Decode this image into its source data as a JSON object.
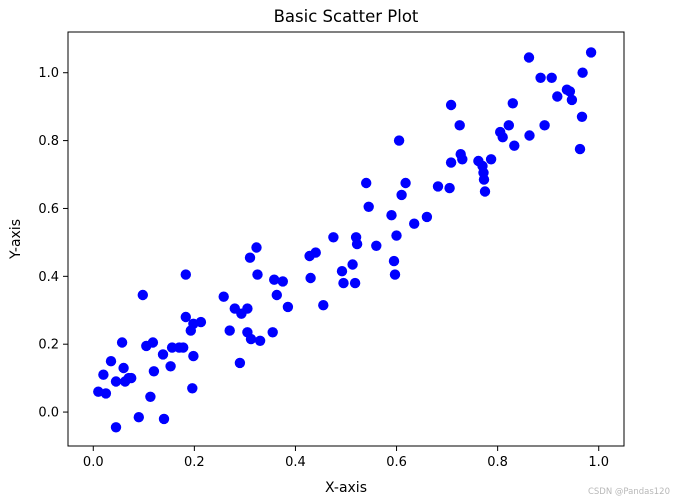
{
  "chart_data": {
    "type": "scatter",
    "title": "Basic Scatter Plot",
    "xlabel": "X-axis",
    "ylabel": "Y-axis",
    "xlim": [
      -0.05,
      1.05
    ],
    "ylim": [
      -0.1,
      1.12
    ],
    "x_ticks": [
      "0.0",
      "0.2",
      "0.4",
      "0.6",
      "0.8",
      "1.0"
    ],
    "y_ticks": [
      "0.0",
      "0.2",
      "0.4",
      "0.6",
      "0.8",
      "1.0"
    ],
    "grid": false,
    "legend": "none",
    "marker_color": "#0000ff",
    "points": [
      {
        "x": 0.01,
        "y": 0.06
      },
      {
        "x": 0.02,
        "y": 0.11
      },
      {
        "x": 0.025,
        "y": 0.055
      },
      {
        "x": 0.035,
        "y": 0.15
      },
      {
        "x": 0.045,
        "y": -0.045
      },
      {
        "x": 0.045,
        "y": 0.09
      },
      {
        "x": 0.057,
        "y": 0.205
      },
      {
        "x": 0.06,
        "y": 0.13
      },
      {
        "x": 0.063,
        "y": 0.09
      },
      {
        "x": 0.07,
        "y": 0.1
      },
      {
        "x": 0.075,
        "y": 0.1
      },
      {
        "x": 0.09,
        "y": -0.015
      },
      {
        "x": 0.098,
        "y": 0.345
      },
      {
        "x": 0.105,
        "y": 0.195
      },
      {
        "x": 0.113,
        "y": 0.045
      },
      {
        "x": 0.118,
        "y": 0.205
      },
      {
        "x": 0.12,
        "y": 0.12
      },
      {
        "x": 0.138,
        "y": 0.17
      },
      {
        "x": 0.14,
        "y": -0.02
      },
      {
        "x": 0.153,
        "y": 0.135
      },
      {
        "x": 0.156,
        "y": 0.19
      },
      {
        "x": 0.17,
        "y": 0.19
      },
      {
        "x": 0.178,
        "y": 0.19
      },
      {
        "x": 0.183,
        "y": 0.405
      },
      {
        "x": 0.183,
        "y": 0.28
      },
      {
        "x": 0.193,
        "y": 0.24
      },
      {
        "x": 0.196,
        "y": 0.07
      },
      {
        "x": 0.198,
        "y": 0.165
      },
      {
        "x": 0.198,
        "y": 0.26
      },
      {
        "x": 0.213,
        "y": 0.265
      },
      {
        "x": 0.258,
        "y": 0.34
      },
      {
        "x": 0.27,
        "y": 0.24
      },
      {
        "x": 0.28,
        "y": 0.305
      },
      {
        "x": 0.29,
        "y": 0.145
      },
      {
        "x": 0.293,
        "y": 0.29
      },
      {
        "x": 0.305,
        "y": 0.305
      },
      {
        "x": 0.305,
        "y": 0.235
      },
      {
        "x": 0.31,
        "y": 0.455
      },
      {
        "x": 0.312,
        "y": 0.215
      },
      {
        "x": 0.323,
        "y": 0.485
      },
      {
        "x": 0.325,
        "y": 0.405
      },
      {
        "x": 0.33,
        "y": 0.21
      },
      {
        "x": 0.355,
        "y": 0.235
      },
      {
        "x": 0.358,
        "y": 0.39
      },
      {
        "x": 0.363,
        "y": 0.345
      },
      {
        "x": 0.375,
        "y": 0.385
      },
      {
        "x": 0.385,
        "y": 0.31
      },
      {
        "x": 0.428,
        "y": 0.46
      },
      {
        "x": 0.43,
        "y": 0.395
      },
      {
        "x": 0.44,
        "y": 0.47
      },
      {
        "x": 0.455,
        "y": 0.315
      },
      {
        "x": 0.475,
        "y": 0.515
      },
      {
        "x": 0.492,
        "y": 0.415
      },
      {
        "x": 0.495,
        "y": 0.38
      },
      {
        "x": 0.513,
        "y": 0.435
      },
      {
        "x": 0.518,
        "y": 0.38
      },
      {
        "x": 0.52,
        "y": 0.515
      },
      {
        "x": 0.522,
        "y": 0.495
      },
      {
        "x": 0.54,
        "y": 0.675
      },
      {
        "x": 0.545,
        "y": 0.605
      },
      {
        "x": 0.56,
        "y": 0.49
      },
      {
        "x": 0.59,
        "y": 0.58
      },
      {
        "x": 0.595,
        "y": 0.445
      },
      {
        "x": 0.597,
        "y": 0.405
      },
      {
        "x": 0.6,
        "y": 0.52
      },
      {
        "x": 0.605,
        "y": 0.8
      },
      {
        "x": 0.61,
        "y": 0.64
      },
      {
        "x": 0.618,
        "y": 0.675
      },
      {
        "x": 0.635,
        "y": 0.555
      },
      {
        "x": 0.66,
        "y": 0.575
      },
      {
        "x": 0.682,
        "y": 0.665
      },
      {
        "x": 0.705,
        "y": 0.66
      },
      {
        "x": 0.708,
        "y": 0.905
      },
      {
        "x": 0.708,
        "y": 0.735
      },
      {
        "x": 0.725,
        "y": 0.845
      },
      {
        "x": 0.727,
        "y": 0.76
      },
      {
        "x": 0.73,
        "y": 0.745
      },
      {
        "x": 0.762,
        "y": 0.74
      },
      {
        "x": 0.77,
        "y": 0.725
      },
      {
        "x": 0.772,
        "y": 0.705
      },
      {
        "x": 0.773,
        "y": 0.685
      },
      {
        "x": 0.775,
        "y": 0.65
      },
      {
        "x": 0.787,
        "y": 0.745
      },
      {
        "x": 0.805,
        "y": 0.825
      },
      {
        "x": 0.81,
        "y": 0.81
      },
      {
        "x": 0.822,
        "y": 0.845
      },
      {
        "x": 0.83,
        "y": 0.91
      },
      {
        "x": 0.833,
        "y": 0.785
      },
      {
        "x": 0.862,
        "y": 1.045
      },
      {
        "x": 0.863,
        "y": 0.815
      },
      {
        "x": 0.885,
        "y": 0.985
      },
      {
        "x": 0.893,
        "y": 0.845
      },
      {
        "x": 0.907,
        "y": 0.985
      },
      {
        "x": 0.918,
        "y": 0.93
      },
      {
        "x": 0.937,
        "y": 0.95
      },
      {
        "x": 0.943,
        "y": 0.945
      },
      {
        "x": 0.947,
        "y": 0.92
      },
      {
        "x": 0.963,
        "y": 0.775
      },
      {
        "x": 0.967,
        "y": 0.87
      },
      {
        "x": 0.968,
        "y": 1.0
      },
      {
        "x": 0.985,
        "y": 1.06
      }
    ]
  },
  "watermark": "CSDN @Pandas120"
}
